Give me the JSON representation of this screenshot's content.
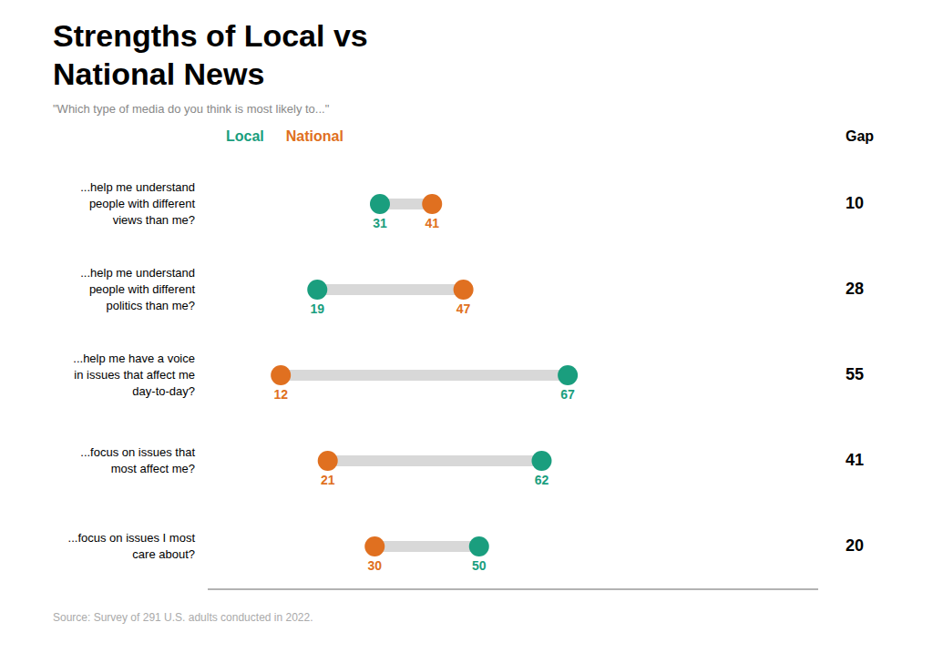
{
  "chart_data": {
    "type": "dumbbell",
    "title": "Strengths of Local vs\nNational News",
    "subtitle": "\"Which type of media do you think is most likely to...\"",
    "categories": [
      "...help me understand\npeople with different\nviews than me?",
      "...help me understand\npeople with different\npolitics than me?",
      "...help me have a voice\nin issues that affect me\nday-to-day?",
      "...focus on issues that\nmost affect me?",
      "...focus on issues I most\ncare about?"
    ],
    "series": [
      {
        "name": "Local",
        "color": "#1a9e7e",
        "values": [
          31,
          19,
          67,
          62,
          50
        ]
      },
      {
        "name": "National",
        "color": "#e07020",
        "values": [
          41,
          47,
          12,
          21,
          30
        ]
      }
    ],
    "gaps": [
      10,
      28,
      55,
      41,
      20
    ],
    "gap_label": "Gap",
    "source": "Source: Survey of 291 U.S. adults conducted in 2022.",
    "xlim": [
      -2,
      115
    ],
    "orientation": "horizontal",
    "data_labels": true,
    "tick_labels": false,
    "color": "#d8d8d8"
  }
}
